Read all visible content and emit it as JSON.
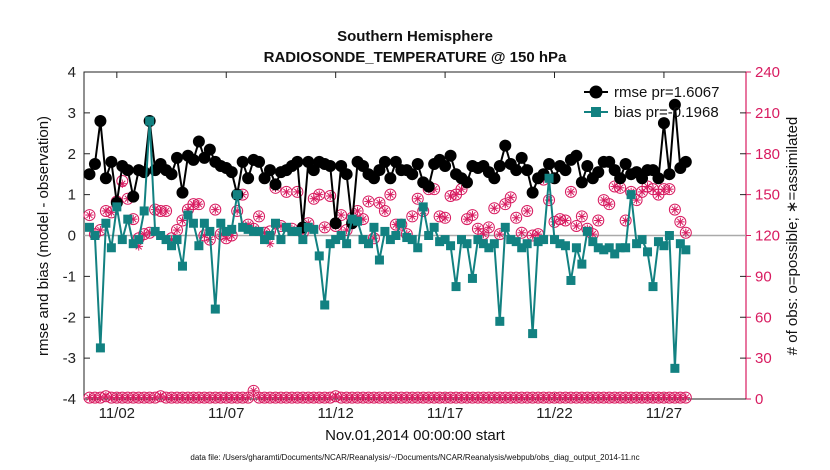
{
  "chart_data": {
    "type": "line",
    "title": "Southern Hemisphere",
    "subtitle": "RADIOSONDE_TEMPERATURE @ 150 hPa",
    "xlabel": "Nov.01,2014 00:00:00 start",
    "ylabel": "rmse and bias (model - observation)",
    "y2label": "# of obs: o=possible; ∗=assimilated",
    "ylim": [
      -4,
      4
    ],
    "y2lim": [
      0,
      240
    ],
    "xlim": [
      0.5,
      30.75
    ],
    "yticks": [
      -4,
      -3,
      -2,
      -1,
      0,
      1,
      2,
      3,
      4
    ],
    "y2ticks": [
      0,
      30,
      60,
      90,
      120,
      150,
      180,
      210,
      240
    ],
    "xticks": [
      {
        "value": 2,
        "label": "11/02"
      },
      {
        "value": 7,
        "label": "11/07"
      },
      {
        "value": 12,
        "label": "11/12"
      },
      {
        "value": 17,
        "label": "11/17"
      },
      {
        "value": 22,
        "label": "11/22"
      },
      {
        "value": 27,
        "label": "11/27"
      }
    ],
    "x_start": 0.75,
    "x_step": 0.25,
    "series": [
      {
        "name": "rmse pr=1.6067",
        "color": "#000000",
        "values": [
          1.5,
          1.75,
          2.8,
          1.4,
          1.8,
          0.8,
          1.7,
          1.6,
          0.95,
          1.6,
          1.55,
          2.8,
          1.6,
          1.75,
          1.6,
          1.5,
          1.9,
          1.05,
          1.95,
          1.85,
          2.3,
          1.9,
          2.1,
          1.8,
          1.7,
          1.65,
          1.55,
          1.0,
          1.8,
          1.4,
          1.85,
          1.8,
          1.4,
          1.6,
          1.25,
          1.55,
          1.6,
          1.7,
          1.8,
          0.2,
          1.8,
          1.6,
          1.8,
          1.75,
          1.7,
          0.3,
          1.7,
          1.5,
          0.3,
          1.8,
          1.7,
          1.5,
          1.4,
          1.6,
          1.8,
          1.4,
          1.8,
          1.6,
          1.6,
          1.5,
          1.75,
          1.3,
          1.2,
          1.75,
          1.85,
          1.7,
          1.95,
          1.5,
          1.4,
          1.3,
          1.7,
          1.65,
          1.7,
          1.55,
          1.4,
          1.7,
          2.2,
          1.75,
          1.6,
          1.9,
          1.6,
          1.05,
          1.4,
          1.5,
          1.75,
          1.4,
          1.7,
          1.6,
          1.85,
          1.95,
          1.3,
          1.7,
          1.4,
          1.55,
          1.8,
          1.8,
          1.6,
          1.4,
          1.75,
          1.5,
          1.55,
          1.4,
          1.6,
          1.6,
          1.4,
          2.75,
          1.5,
          3.2,
          1.65,
          1.8
        ]
      },
      {
        "name": "bias pr=-0.1968",
        "color": "#128181",
        "values": [
          0.2,
          0.0,
          -2.75,
          0.3,
          -0.3,
          0.7,
          -0.1,
          0.4,
          -0.2,
          -0.1,
          0.6,
          2.8,
          0.1,
          0.0,
          -0.1,
          -0.25,
          -0.1,
          -0.75,
          0.5,
          0.3,
          -0.25,
          0.3,
          0.1,
          -1.8,
          0.3,
          0.1,
          0.15,
          1.0,
          0.2,
          0.15,
          0.1,
          0.1,
          -0.1,
          0.0,
          0.3,
          -0.1,
          0.2,
          0.1,
          0.1,
          -0.1,
          0.2,
          0.15,
          -0.5,
          -1.7,
          -0.2,
          -0.1,
          0.0,
          -0.2,
          0.4,
          0.35,
          -0.1,
          -0.2,
          0.2,
          -0.6,
          0.1,
          -0.1,
          0.0,
          0.3,
          -0.05,
          -0.1,
          -0.3,
          0.7,
          0.0,
          0.2,
          -0.15,
          -0.1,
          -0.25,
          -1.25,
          -0.1,
          -0.2,
          -1.05,
          -0.1,
          -0.2,
          -0.3,
          -0.2,
          -2.1,
          0.2,
          -0.1,
          -0.15,
          -0.3,
          -0.2,
          -2.4,
          -0.15,
          -0.1,
          1.4,
          -0.1,
          -0.2,
          -0.25,
          -1.1,
          -0.3,
          -0.7,
          0.1,
          -0.15,
          -0.3,
          -0.35,
          -0.3,
          -0.45,
          -0.3,
          -0.3,
          1.0,
          -0.2,
          -0.1,
          -0.4,
          -1.25,
          -0.15,
          -0.25,
          0.0,
          -3.25,
          -0.2,
          -0.35
        ]
      }
    ],
    "obs_possible": [
      135,
      121,
      124,
      138,
      137,
      145,
      160,
      147,
      132,
      118,
      121,
      122,
      139,
      138,
      138,
      118,
      124,
      131,
      139,
      143,
      143,
      120,
      117,
      139,
      121,
      118,
      120,
      138,
      150,
      128,
      125,
      134,
      122,
      123,
      155,
      127,
      152,
      125,
      152,
      122,
      129,
      147,
      150,
      126,
      149,
      127,
      135,
      124,
      133,
      138,
      132,
      145,
      118,
      144,
      138,
      150,
      128,
      128,
      121,
      134,
      147,
      138,
      154,
      154,
      134,
      133,
      149,
      150,
      154,
      132,
      135,
      125,
      121,
      126,
      140,
      121,
      143,
      148,
      133,
      122,
      138,
      120,
      121,
      161,
      146,
      130,
      132,
      131,
      152,
      127,
      134,
      125,
      121,
      131,
      146,
      143,
      156,
      155,
      131,
      152,
      146,
      152,
      156,
      154,
      150,
      154,
      154,
      139,
      130,
      122
    ],
    "obs_assimilated": [
      135,
      121,
      124,
      138,
      137,
      145,
      158,
      147,
      132,
      112,
      121,
      122,
      139,
      138,
      138,
      117,
      124,
      131,
      139,
      143,
      143,
      120,
      117,
      139,
      121,
      118,
      120,
      138,
      150,
      128,
      125,
      134,
      122,
      114,
      155,
      127,
      152,
      125,
      152,
      122,
      129,
      147,
      150,
      126,
      149,
      127,
      135,
      124,
      133,
      138,
      132,
      145,
      118,
      144,
      138,
      150,
      128,
      128,
      121,
      134,
      147,
      138,
      154,
      154,
      134,
      133,
      149,
      150,
      154,
      132,
      135,
      125,
      121,
      126,
      140,
      121,
      143,
      148,
      133,
      122,
      138,
      120,
      121,
      161,
      146,
      130,
      132,
      131,
      152,
      127,
      134,
      125,
      121,
      131,
      146,
      143,
      156,
      155,
      131,
      152,
      146,
      152,
      156,
      154,
      150,
      154,
      154,
      139,
      130,
      122
    ],
    "obs_bottom_possible": [
      1,
      1,
      1,
      2,
      1,
      1,
      1,
      1,
      1,
      1,
      1,
      1,
      1,
      2,
      1,
      1,
      1,
      1,
      1,
      1,
      1,
      1,
      1,
      1,
      1,
      1,
      1,
      1,
      1,
      1,
      6,
      1,
      1,
      1,
      1,
      1,
      1,
      1,
      1,
      1,
      1,
      1,
      1,
      1,
      1,
      2,
      1,
      1,
      1,
      1,
      1,
      1,
      1,
      1,
      1,
      1,
      1,
      1,
      1,
      1,
      1,
      1,
      1,
      1,
      1,
      1,
      1,
      1,
      1,
      1,
      1,
      1,
      1,
      1,
      1,
      1,
      1,
      1,
      1,
      1,
      1,
      1,
      1,
      1,
      1,
      1,
      1,
      1,
      1,
      1,
      1,
      1,
      1,
      1,
      1,
      1,
      1,
      1,
      1,
      1,
      1,
      1,
      1,
      1,
      1,
      1,
      1,
      1,
      1,
      1
    ],
    "obs_color": "#d81b60",
    "zero_line_color": "#aaaaaa",
    "footer": "data file: /Users/gharamti/Documents/NCAR/Reanalysis/~/Documents/NCAR/Reanalysis/webpub/obs_diag_output_2014-11.nc",
    "legend": {
      "placement": "top-right"
    }
  }
}
